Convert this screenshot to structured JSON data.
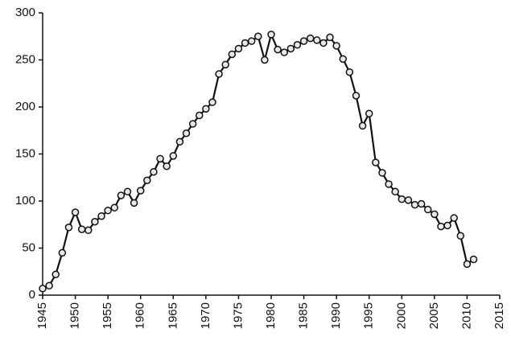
{
  "chart_data": {
    "type": "line",
    "x": [
      1945,
      1946,
      1947,
      1948,
      1949,
      1950,
      1951,
      1952,
      1953,
      1954,
      1955,
      1956,
      1957,
      1958,
      1959,
      1960,
      1961,
      1962,
      1963,
      1964,
      1965,
      1966,
      1967,
      1968,
      1969,
      1970,
      1971,
      1972,
      1973,
      1974,
      1975,
      1976,
      1977,
      1978,
      1979,
      1980,
      1981,
      1982,
      1983,
      1984,
      1985,
      1986,
      1987,
      1988,
      1989,
      1990,
      1991,
      1992,
      1993,
      1994,
      1995,
      1996,
      1997,
      1998,
      1999,
      2000,
      2001,
      2002,
      2003,
      2004,
      2005,
      2006,
      2007,
      2008,
      2009,
      2010,
      2011
    ],
    "values": [
      7,
      10,
      22,
      45,
      72,
      88,
      70,
      69,
      78,
      84,
      90,
      93,
      106,
      110,
      98,
      111,
      122,
      131,
      145,
      137,
      148,
      163,
      172,
      182,
      191,
      198,
      205,
      235,
      245,
      256,
      262,
      268,
      270,
      275,
      250,
      277,
      261,
      258,
      262,
      266,
      270,
      273,
      271,
      268,
      274,
      265,
      251,
      237,
      212,
      180,
      193,
      141,
      130,
      118,
      110,
      102,
      101,
      96,
      97,
      91,
      86,
      73,
      74,
      82,
      63,
      33,
      38
    ],
    "color": "#111111",
    "marker_fill": "#e8e8e8",
    "xlim": [
      1945,
      2015
    ],
    "xticks": [
      1945,
      1950,
      1955,
      1960,
      1965,
      1970,
      1975,
      1980,
      1985,
      1990,
      1995,
      2000,
      2005,
      2010,
      2015
    ],
    "ylim": [
      0,
      300
    ],
    "yticks": [
      0,
      50,
      100,
      150,
      200,
      250,
      300
    ],
    "grid": false
  }
}
